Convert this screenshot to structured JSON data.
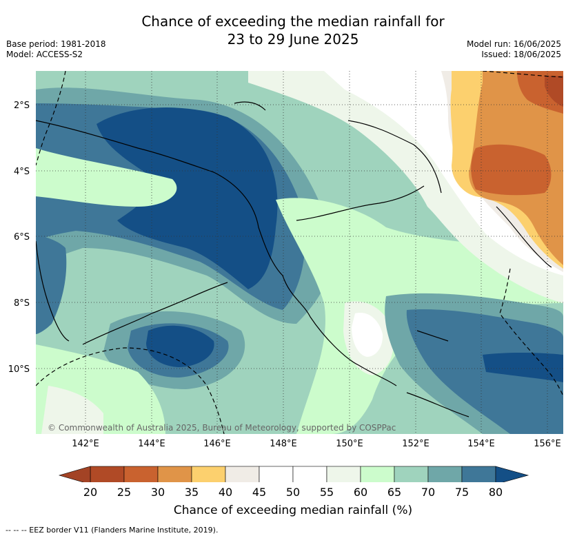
{
  "title_line1": "Chance of exceeding the median rainfall for",
  "title_line2": "23 to 29 June 2025",
  "meta_left": [
    "Base period: 1981-2018",
    "Model: ACCESS-S2"
  ],
  "meta_right": [
    "Model run: 16/06/2025",
    "Issued: 18/06/2025"
  ],
  "copyright": "© Commonwealth of Australia 2025, Bureau of Meteorology, supported by COSPPac",
  "lon_ticks": [
    "142°E",
    "144°E",
    "146°E",
    "148°E",
    "150°E",
    "152°E",
    "154°E",
    "156°E"
  ],
  "lat_ticks": [
    "2°S",
    "4°S",
    "6°S",
    "8°S",
    "10°S"
  ],
  "colorbar": {
    "ticks": [
      "20",
      "25",
      "30",
      "35",
      "40",
      "45",
      "50",
      "55",
      "60",
      "65",
      "70",
      "75",
      "80"
    ],
    "colors": [
      "#b04a26",
      "#c9622f",
      "#e09448",
      "#fcd06e",
      "#f0ece6",
      "#ffffff",
      "#ffffff",
      "#eef6ea",
      "#ccfccc",
      "#9fd3bd",
      "#6fa7a8",
      "#3f7798"
    ],
    "under_color": "#a34325",
    "over_color": "#144f86",
    "label": "Chance of exceeding median rainfall (%)"
  },
  "footnote": "-- -- -- EEZ border V11 (Flanders Marine Institute, 2019)."
}
